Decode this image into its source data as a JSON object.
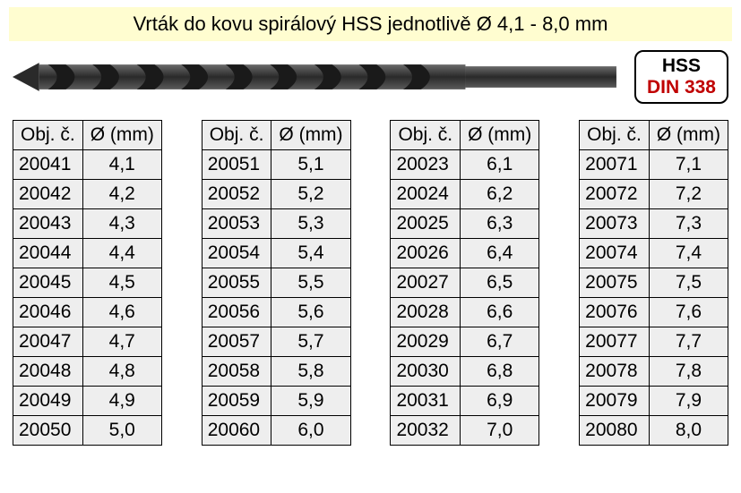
{
  "title": "Vrták do kovu spirálový HSS jednotlivě Ø 4,1 - 8,0 mm",
  "badge": {
    "line1": "HSS",
    "line2": "DIN 338"
  },
  "columns": {
    "code": "Obj. č.",
    "diameter": "Ø (mm)"
  },
  "styling": {
    "title_bg": "#fffdd0",
    "cell_bg": "#eeeeee",
    "border_color": "#000000",
    "badge_text1_color": "#000000",
    "badge_text2_color": "#c00000",
    "title_fontsize": 22,
    "table_fontsize": 21,
    "drill_colors": {
      "body": "#3a3a3a",
      "dark": "#1f1f1f",
      "light": "#6a6a6a"
    }
  },
  "tables": [
    {
      "rows": [
        [
          "20041",
          "4,1"
        ],
        [
          "20042",
          "4,2"
        ],
        [
          "20043",
          "4,3"
        ],
        [
          "20044",
          "4,4"
        ],
        [
          "20045",
          "4,5"
        ],
        [
          "20046",
          "4,6"
        ],
        [
          "20047",
          "4,7"
        ],
        [
          "20048",
          "4,8"
        ],
        [
          "20049",
          "4,9"
        ],
        [
          "20050",
          "5,0"
        ]
      ]
    },
    {
      "rows": [
        [
          "20051",
          "5,1"
        ],
        [
          "20052",
          "5,2"
        ],
        [
          "20053",
          "5,3"
        ],
        [
          "20054",
          "5,4"
        ],
        [
          "20055",
          "5,5"
        ],
        [
          "20056",
          "5,6"
        ],
        [
          "20057",
          "5,7"
        ],
        [
          "20058",
          "5,8"
        ],
        [
          "20059",
          "5,9"
        ],
        [
          "20060",
          "6,0"
        ]
      ]
    },
    {
      "rows": [
        [
          "20023",
          "6,1"
        ],
        [
          "20024",
          "6,2"
        ],
        [
          "20025",
          "6,3"
        ],
        [
          "20026",
          "6,4"
        ],
        [
          "20027",
          "6,5"
        ],
        [
          "20028",
          "6,6"
        ],
        [
          "20029",
          "6,7"
        ],
        [
          "20030",
          "6,8"
        ],
        [
          "20031",
          "6,9"
        ],
        [
          "20032",
          "7,0"
        ]
      ]
    },
    {
      "rows": [
        [
          "20071",
          "7,1"
        ],
        [
          "20072",
          "7,2"
        ],
        [
          "20073",
          "7,3"
        ],
        [
          "20074",
          "7,4"
        ],
        [
          "20075",
          "7,5"
        ],
        [
          "20076",
          "7,6"
        ],
        [
          "20077",
          "7,7"
        ],
        [
          "20078",
          "7,8"
        ],
        [
          "20079",
          "7,9"
        ],
        [
          "20080",
          "8,0"
        ]
      ]
    }
  ]
}
